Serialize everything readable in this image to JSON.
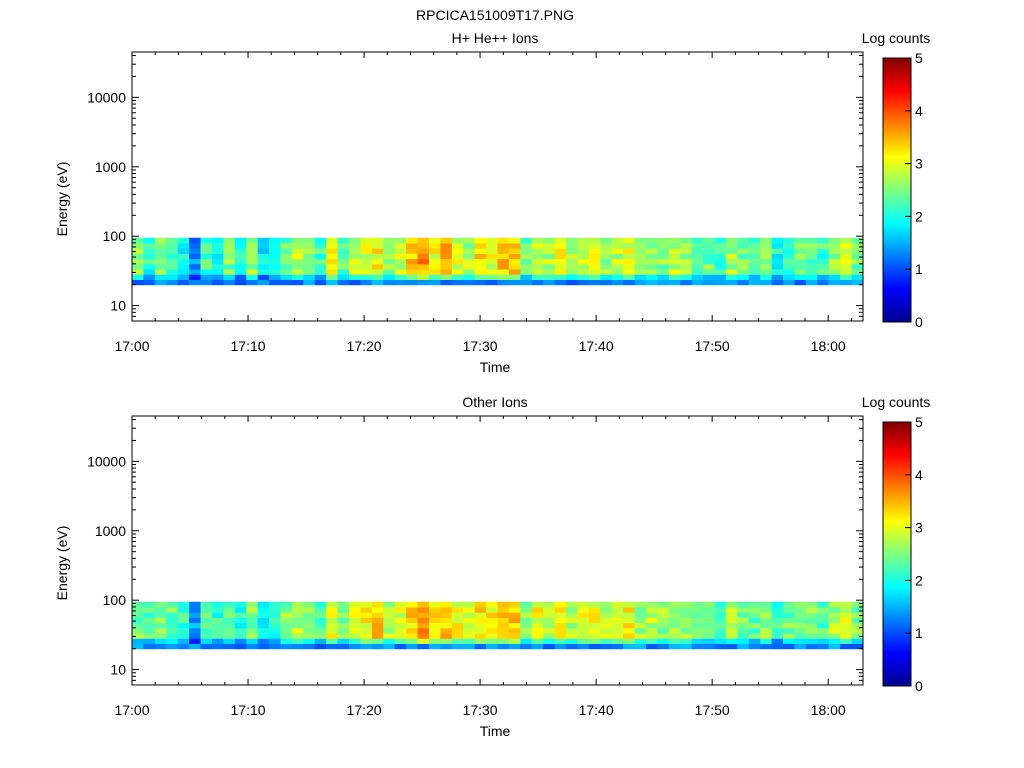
{
  "figure_title": "RPCICA151009T17.PNG",
  "chart_data": [
    {
      "type": "heatmap",
      "title": "H+ He++ Ions",
      "xlabel": "Time",
      "ylabel": "Energy (eV)",
      "colorbar_label": "Log counts",
      "colorbar_ticks": [
        "0",
        "1",
        "2",
        "3",
        "4",
        "5"
      ],
      "clim": [
        0,
        5
      ],
      "x_ticks": [
        "17:00",
        "17:10",
        "17:20",
        "17:30",
        "17:40",
        "17:50",
        "18:00"
      ],
      "x_range": [
        "17:00",
        "18:03"
      ],
      "y_scale": "log",
      "y_ticks": [
        "10",
        "100",
        "1000",
        "10000"
      ],
      "ylim": [
        6,
        45000
      ],
      "energy_range_ev": [
        20,
        95
      ],
      "mean_log_counts": [
        2.5,
        2.1,
        2.6,
        2.3,
        2.0,
        1.3,
        2.2,
        2.0,
        2.5,
        1.9,
        2.6,
        1.8,
        2.0,
        2.4,
        2.8,
        2.5,
        2.2,
        3.0,
        2.3,
        2.8,
        2.9,
        3.1,
        2.6,
        2.9,
        3.3,
        3.6,
        3.1,
        3.4,
        2.9,
        2.7,
        3.2,
        3.0,
        3.4,
        3.3,
        2.4,
        2.9,
        2.7,
        3.0,
        2.6,
        2.8,
        2.9,
        2.7,
        2.8,
        3.0,
        2.6,
        2.7,
        2.5,
        2.8,
        2.6,
        2.3,
        2.4,
        2.2,
        2.7,
        2.4,
        2.2,
        2.6,
        2.0,
        2.3,
        2.5,
        2.4,
        2.2,
        2.6,
        2.8,
        2.4
      ],
      "colorscale": [
        "#00008f",
        "#0000ff",
        "#007fff",
        "#00ffff",
        "#7fff7f",
        "#ffff00",
        "#ff7f00",
        "#ff0000",
        "#800000"
      ]
    },
    {
      "type": "heatmap",
      "title": "Other Ions",
      "xlabel": "Time",
      "ylabel": "Energy (eV)",
      "colorbar_label": "Log counts",
      "colorbar_ticks": [
        "0",
        "1",
        "2",
        "3",
        "4",
        "5"
      ],
      "clim": [
        0,
        5
      ],
      "x_ticks": [
        "17:00",
        "17:10",
        "17:20",
        "17:30",
        "17:40",
        "17:50",
        "18:00"
      ],
      "x_range": [
        "17:00",
        "18:03"
      ],
      "y_scale": "log",
      "y_ticks": [
        "10",
        "100",
        "1000",
        "10000"
      ],
      "ylim": [
        6,
        45000
      ],
      "energy_range_ev": [
        20,
        95
      ],
      "mean_log_counts": [
        2.4,
        2.2,
        2.5,
        2.4,
        2.1,
        1.5,
        2.3,
        2.1,
        2.4,
        2.0,
        2.5,
        1.9,
        2.1,
        2.5,
        2.8,
        2.6,
        2.3,
        3.0,
        2.4,
        2.9,
        3.1,
        3.3,
        2.7,
        3.0,
        3.3,
        3.6,
        3.2,
        3.4,
        3.0,
        2.8,
        3.3,
        3.1,
        3.4,
        3.3,
        2.5,
        3.0,
        2.8,
        3.1,
        2.7,
        2.9,
        3.0,
        2.8,
        2.9,
        3.1,
        2.7,
        2.8,
        2.6,
        2.8,
        2.7,
        2.4,
        2.5,
        2.3,
        2.7,
        2.5,
        2.3,
        2.6,
        2.1,
        2.4,
        2.6,
        2.5,
        2.3,
        2.7,
        2.9,
        2.5
      ],
      "colorscale": [
        "#00008f",
        "#0000ff",
        "#007fff",
        "#00ffff",
        "#7fff7f",
        "#ffff00",
        "#ff7f00",
        "#ff0000",
        "#800000"
      ]
    }
  ]
}
